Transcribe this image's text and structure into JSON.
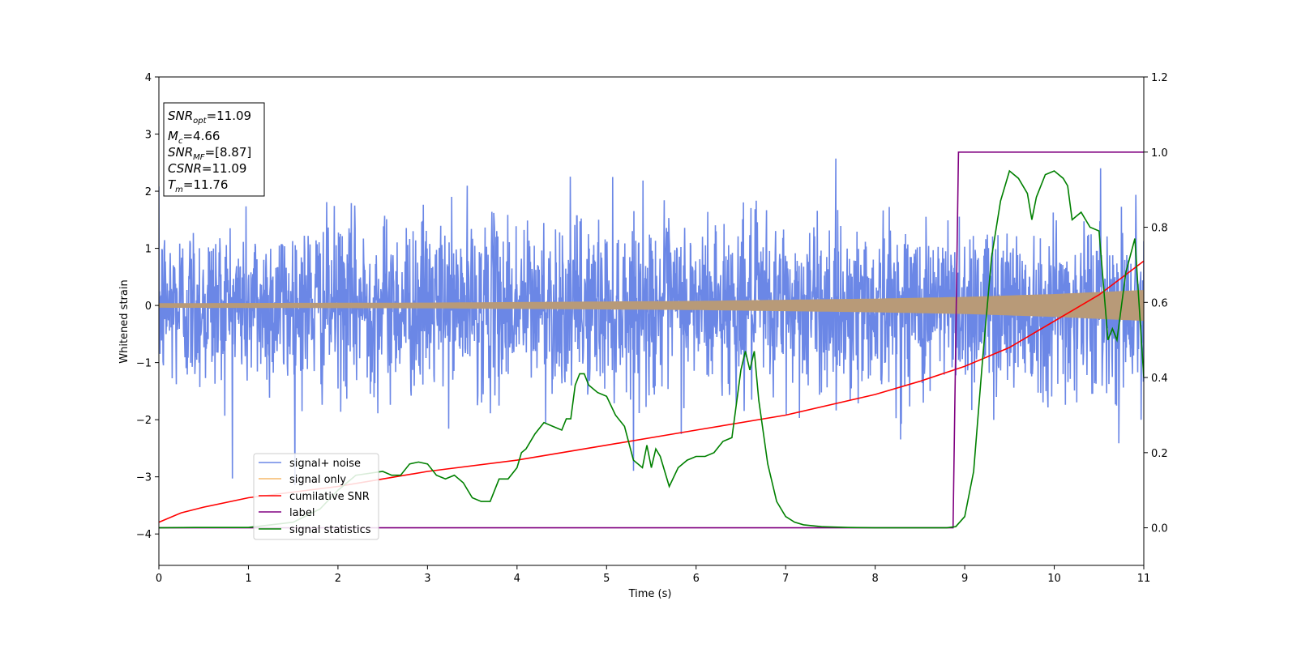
{
  "chart_data": {
    "type": "line",
    "xlabel": "Time (s)",
    "ylabel": "Whitened strain",
    "xlim": [
      0,
      11
    ],
    "ylim_left": [
      -4.55,
      4
    ],
    "ylim_right": [
      -0.1,
      1.2
    ],
    "x_ticks": [
      "0",
      "1",
      "2",
      "3",
      "4",
      "5",
      "6",
      "7",
      "8",
      "9",
      "10",
      "11"
    ],
    "y_ticks_left": [
      "4",
      "3",
      "2",
      "1",
      "0",
      "−1",
      "−2",
      "−3",
      "−4"
    ],
    "y_ticks_right": [
      "1.2",
      "1.0",
      "0.8",
      "0.6",
      "0.4",
      "0.2",
      "0.0"
    ],
    "legend_position": "lower-left",
    "colors": {
      "noise": "#6b87e6",
      "signal": "#f5b96a",
      "signal_overlap": "#b89a78",
      "csnr": "#ff0000",
      "label": "#800080",
      "stats": "#008000"
    },
    "series": [
      {
        "name": "signal+ noise",
        "axis": "left",
        "kind": "noise",
        "amplitude_std": 0.75
      },
      {
        "name": "signal only",
        "axis": "left",
        "kind": "chirp",
        "envelope": [
          [
            0,
            0.04
          ],
          [
            3,
            0.05
          ],
          [
            6,
            0.08
          ],
          [
            8,
            0.12
          ],
          [
            9,
            0.15
          ],
          [
            10,
            0.2
          ],
          [
            11,
            0.27
          ]
        ]
      },
      {
        "name": "cumilative SNR",
        "axis": "right",
        "kind": "line",
        "x": [
          0,
          0.25,
          0.5,
          1,
          1.5,
          2,
          2.5,
          3,
          4,
          5,
          6,
          7,
          8,
          8.5,
          9,
          9.5,
          10,
          10.5,
          11
        ],
        "y": [
          0.015,
          0.04,
          0.055,
          0.08,
          0.095,
          0.11,
          0.13,
          0.15,
          0.18,
          0.22,
          0.26,
          0.3,
          0.355,
          0.39,
          0.43,
          0.48,
          0.55,
          0.62,
          0.71
        ]
      },
      {
        "name": "label",
        "axis": "right",
        "kind": "step",
        "x": [
          0,
          8.87,
          8.93,
          11
        ],
        "y": [
          0,
          0,
          1,
          1
        ]
      },
      {
        "name": "signal statistics",
        "axis": "right",
        "kind": "line",
        "x": [
          0,
          0.4,
          1,
          1.5,
          1.8,
          2.0,
          2.2,
          2.5,
          2.6,
          2.7,
          2.8,
          2.9,
          3.0,
          3.1,
          3.2,
          3.3,
          3.4,
          3.5,
          3.6,
          3.7,
          3.8,
          3.9,
          4.0,
          4.05,
          4.1,
          4.2,
          4.3,
          4.4,
          4.5,
          4.55,
          4.6,
          4.65,
          4.7,
          4.75,
          4.8,
          4.9,
          5.0,
          5.1,
          5.2,
          5.3,
          5.4,
          5.45,
          5.5,
          5.55,
          5.6,
          5.7,
          5.8,
          5.9,
          6.0,
          6.1,
          6.2,
          6.3,
          6.4,
          6.5,
          6.55,
          6.6,
          6.65,
          6.7,
          6.8,
          6.9,
          7.0,
          7.1,
          7.2,
          7.4,
          7.7,
          8.0,
          8.5,
          8.8,
          8.9,
          9.0,
          9.1,
          9.2,
          9.3,
          9.4,
          9.5,
          9.6,
          9.7,
          9.75,
          9.8,
          9.9,
          10.0,
          10.1,
          10.15,
          10.2,
          10.3,
          10.4,
          10.5,
          10.6,
          10.65,
          10.7,
          10.8,
          10.9,
          11.0
        ],
        "y": [
          0.0,
          0.001,
          0.001,
          0.015,
          0.05,
          0.1,
          0.14,
          0.15,
          0.14,
          0.14,
          0.17,
          0.175,
          0.17,
          0.14,
          0.13,
          0.14,
          0.12,
          0.08,
          0.07,
          0.07,
          0.13,
          0.13,
          0.16,
          0.2,
          0.21,
          0.25,
          0.28,
          0.27,
          0.26,
          0.29,
          0.29,
          0.38,
          0.41,
          0.41,
          0.38,
          0.36,
          0.35,
          0.3,
          0.27,
          0.18,
          0.16,
          0.22,
          0.16,
          0.21,
          0.19,
          0.11,
          0.16,
          0.18,
          0.19,
          0.19,
          0.2,
          0.23,
          0.24,
          0.42,
          0.47,
          0.42,
          0.47,
          0.34,
          0.17,
          0.07,
          0.03,
          0.015,
          0.008,
          0.003,
          0.001,
          0.0,
          0.0,
          0.0,
          0.003,
          0.03,
          0.15,
          0.45,
          0.72,
          0.87,
          0.95,
          0.93,
          0.89,
          0.82,
          0.88,
          0.94,
          0.95,
          0.93,
          0.91,
          0.82,
          0.84,
          0.8,
          0.79,
          0.5,
          0.53,
          0.5,
          0.68,
          0.77,
          0.4
        ]
      }
    ]
  },
  "annotation_box": {
    "snr_opt_label": "SNR",
    "snr_opt_sub": "opt",
    "snr_opt_value": "=11.09",
    "mc_label": "M",
    "mc_sub": "c",
    "mc_value": "=4.66",
    "snr_mf_label": "SNR",
    "snr_mf_sub": "MF",
    "snr_mf_value": "=[8.87]",
    "csnr_label": "CSNR",
    "csnr_value": "=11.09",
    "tm_label": "T",
    "tm_sub": "m",
    "tm_value": "=11.76"
  }
}
